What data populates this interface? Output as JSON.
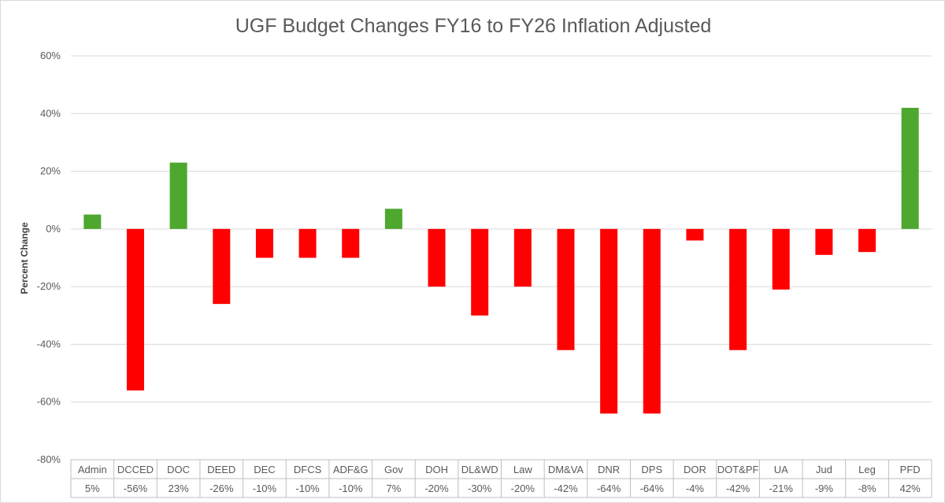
{
  "chart_data": {
    "type": "bar",
    "title": "UGF Budget Changes FY16 to FY26 Inflation Adjusted",
    "xlabel": "",
    "ylabel": "Percent Change",
    "ylim": [
      -80,
      60
    ],
    "yticks": [
      60,
      40,
      20,
      0,
      -20,
      -40,
      -60,
      -80
    ],
    "ytick_labels": [
      "60%",
      "40%",
      "20%",
      "0%",
      "-20%",
      "-40%",
      "-60%",
      "-80%"
    ],
    "grid": true,
    "legend": "none",
    "categories": [
      "Admin",
      "DCCED",
      "DOC",
      "DEED",
      "DEC",
      "DFCS",
      "ADF&G",
      "Gov",
      "DOH",
      "DL&WD",
      "Law",
      "DM&VA",
      "DNR",
      "DPS",
      "DOR",
      "DOT&PF",
      "UA",
      "Jud",
      "Leg",
      "PFD"
    ],
    "values": [
      5,
      -56,
      23,
      -26,
      -10,
      -10,
      -10,
      7,
      -20,
      -30,
      -20,
      -42,
      -64,
      -64,
      -4,
      -42,
      -21,
      -9,
      -8,
      42
    ],
    "value_labels": [
      "5%",
      "-56%",
      "23%",
      "-26%",
      "-10%",
      "-10%",
      "-10%",
      "7%",
      "-20%",
      "-30%",
      "-20%",
      "-42%",
      "-64%",
      "-64%",
      "-4%",
      "-42%",
      "-21%",
      "-9%",
      "-8%",
      "42%"
    ],
    "colors": {
      "positive": "#4EA72E",
      "negative": "#FF0000"
    }
  }
}
